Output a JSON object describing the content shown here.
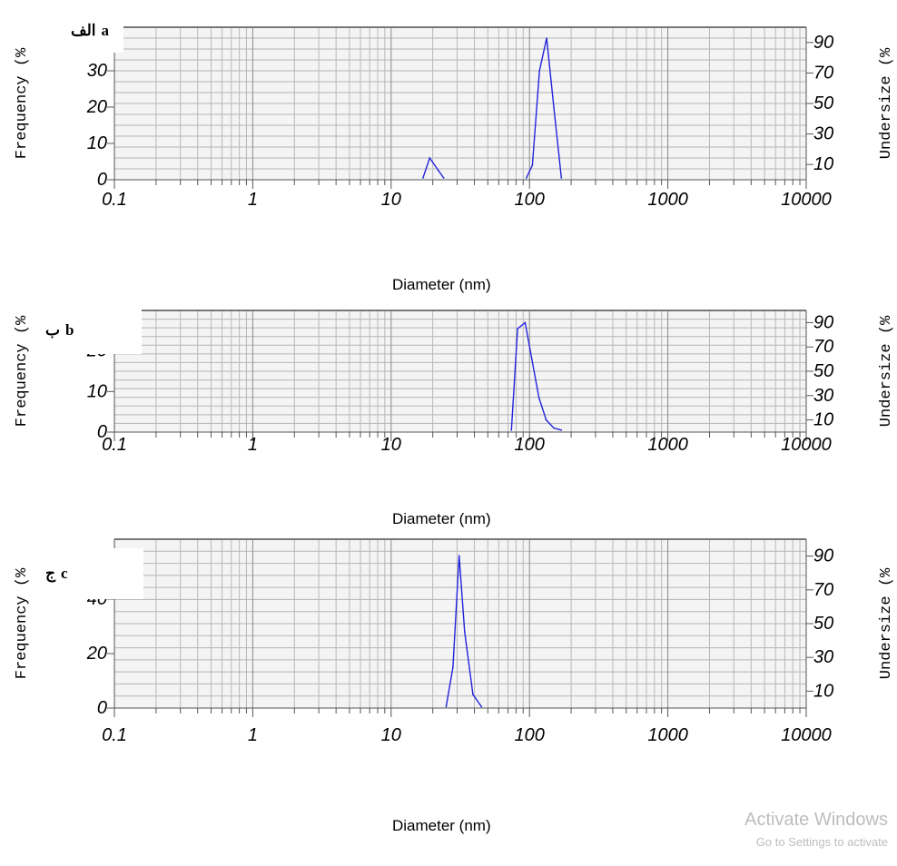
{
  "panels": [
    {
      "id": "a",
      "label_latin": "a",
      "label_arabic": "الف",
      "xlabel": "Diameter (nm)",
      "left_axis_label": "Frequency (%",
      "right_axis_label": "Undersize (%",
      "x_ticks": [
        "0.1",
        "1",
        "10",
        "100",
        "1000",
        "10000"
      ],
      "y_ticks_left": [
        "0",
        "10",
        "20",
        "30"
      ],
      "y_ticks_right": [
        "10",
        "30",
        "50",
        "70",
        "90"
      ]
    },
    {
      "id": "b",
      "label_latin": "b",
      "label_arabic": "ب",
      "xlabel": "Diameter (nm)",
      "left_axis_label": "Frequency (%",
      "right_axis_label": "Undersize (%",
      "x_ticks": [
        "0.1",
        "1",
        "10",
        "100",
        "1000",
        "10000"
      ],
      "y_ticks_left": [
        "0",
        "10",
        "20"
      ],
      "y_ticks_right": [
        "10",
        "30",
        "50",
        "70",
        "90"
      ]
    },
    {
      "id": "c",
      "label_latin": "c",
      "label_arabic": "ج",
      "xlabel": "Diameter (nm)",
      "left_axis_label": "Frequency (%",
      "right_axis_label": "Undersize (%",
      "x_ticks": [
        "0.1",
        "1",
        "10",
        "100",
        "1000",
        "10000"
      ],
      "y_ticks_left": [
        "0",
        "20",
        "40"
      ],
      "y_ticks_right": [
        "10",
        "30",
        "50",
        "70",
        "90"
      ]
    }
  ],
  "watermark": {
    "line1": "Activate Windows",
    "line2": "Go to Settings to activate"
  },
  "chart_data": [
    {
      "type": "line",
      "x_scale": "log",
      "xlim": [
        0.1,
        10000
      ],
      "ylim_left": [
        0,
        42
      ],
      "ylim_right": [
        0,
        100
      ],
      "grid": true,
      "line_color": "#2222dd",
      "series": [
        {
          "x": [
            17,
            19,
            22,
            24
          ],
          "values": [
            0.5,
            6.0,
            2.5,
            0.5
          ]
        },
        {
          "x": [
            95,
            105,
            118,
            133,
            150,
            170
          ],
          "values": [
            0.5,
            4.0,
            30.0,
            39.0,
            20.0,
            0.5
          ]
        }
      ]
    },
    {
      "type": "line",
      "x_scale": "log",
      "xlim": [
        0.1,
        10000
      ],
      "ylim_left": [
        0,
        30
      ],
      "ylim_right": [
        0,
        100
      ],
      "grid": true,
      "line_color": "#2222dd",
      "series": [
        {
          "x": [
            74,
            82,
            93,
            104,
            117,
            132,
            150,
            170
          ],
          "values": [
            0.5,
            25.5,
            27.0,
            18.0,
            8.5,
            3.0,
            1.0,
            0.5
          ]
        }
      ]
    },
    {
      "type": "line",
      "x_scale": "log",
      "xlim": [
        0.1,
        10000
      ],
      "ylim_left": [
        0,
        62
      ],
      "ylim_right": [
        0,
        100
      ],
      "grid": true,
      "line_color": "#2222dd",
      "series": [
        {
          "x": [
            25,
            28,
            31,
            34,
            39,
            45
          ],
          "values": [
            0.5,
            15.0,
            56.0,
            28.0,
            5.0,
            0.5
          ]
        }
      ]
    }
  ]
}
